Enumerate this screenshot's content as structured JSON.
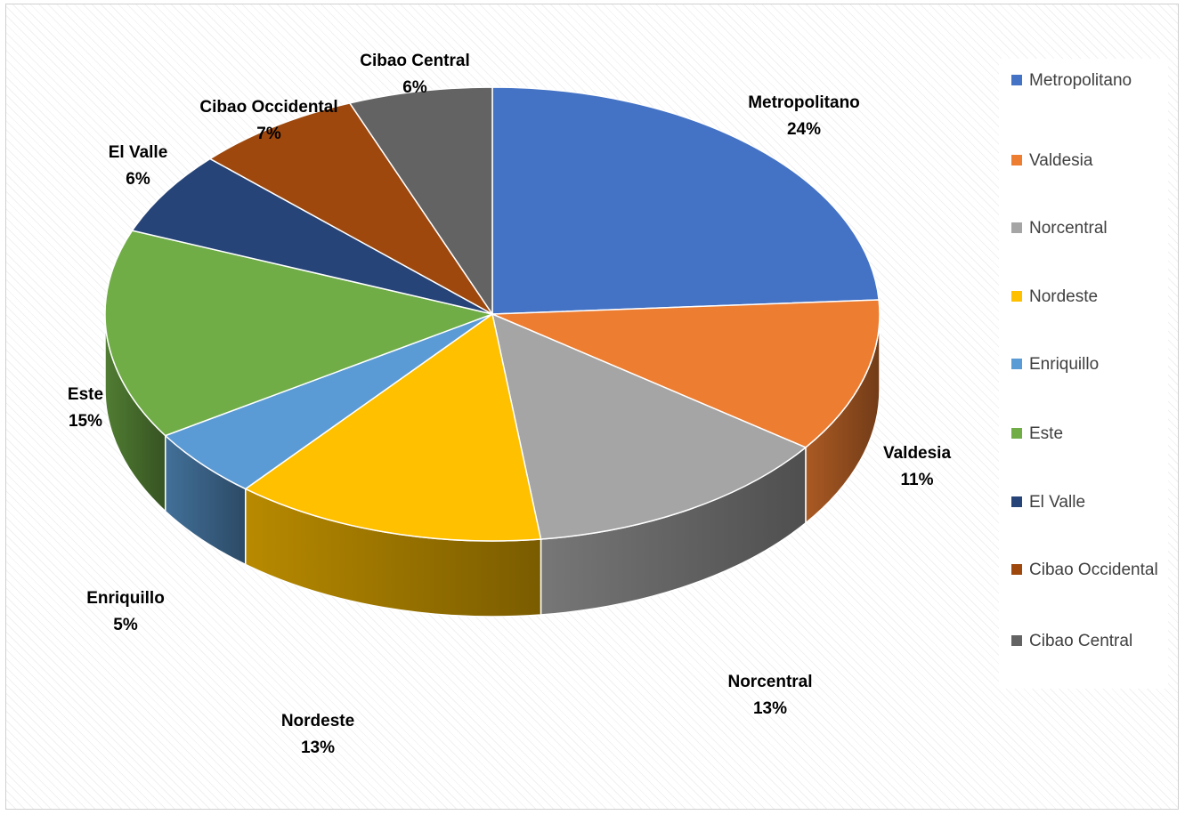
{
  "chart_data": {
    "type": "pie",
    "style": "3d",
    "title": "",
    "legend_position": "right",
    "slices": [
      {
        "label": "Metropolitano",
        "value": 24,
        "value_label": "24%",
        "color": "#4472C4"
      },
      {
        "label": "Valdesia",
        "value": 11,
        "value_label": "11%",
        "color": "#ED7D31"
      },
      {
        "label": "Norcentral",
        "value": 13,
        "value_label": "13%",
        "color": "#A5A5A5"
      },
      {
        "label": "Nordeste",
        "value": 13,
        "value_label": "13%",
        "color": "#FFC000"
      },
      {
        "label": "Enriquillo",
        "value": 5,
        "value_label": "5%",
        "color": "#5B9BD5"
      },
      {
        "label": "Este",
        "value": 15,
        "value_label": "15%",
        "color": "#70AD47"
      },
      {
        "label": "El Valle",
        "value": 6,
        "value_label": "6%",
        "color": "#264478"
      },
      {
        "label": "Cibao Occidental",
        "value": 7,
        "value_label": "7%",
        "color": "#9E480E"
      },
      {
        "label": "Cibao Central",
        "value": 6,
        "value_label": "6%",
        "color": "#636363"
      }
    ]
  }
}
